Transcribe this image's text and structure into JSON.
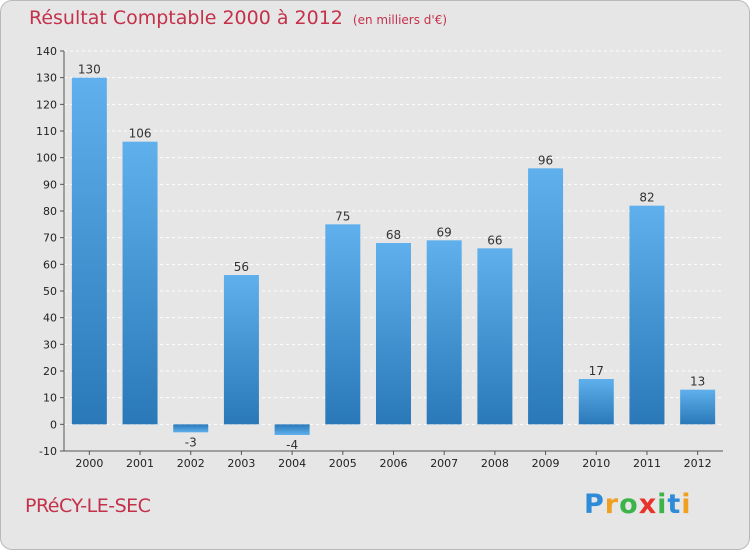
{
  "header": {
    "title": "Résultat Comptable 2000 à 2012",
    "unit": "(en milliers d'€)"
  },
  "footer": {
    "commune": "PRéCY-LE-SEC",
    "brand_letters": [
      "P",
      "r",
      "o",
      "x",
      "i",
      "t",
      "i"
    ],
    "brand_colors": [
      "#2e8bd8",
      "#f0a020",
      "#3cb44a",
      "#e8332a",
      "#3cb44a",
      "#2e8bd8",
      "#f0a020"
    ]
  },
  "colors": {
    "bar_light": "#5fb0ec",
    "bar_dark": "#2a78b8",
    "accent": "#c4314a"
  },
  "chart_data": {
    "type": "bar",
    "categories": [
      "2000",
      "2001",
      "2002",
      "2003",
      "2004",
      "2005",
      "2006",
      "2007",
      "2008",
      "2009",
      "2010",
      "2011",
      "2012"
    ],
    "values": [
      130,
      106,
      -3,
      56,
      -4,
      75,
      68,
      69,
      66,
      96,
      17,
      82,
      13
    ],
    "ylim": [
      -10,
      140
    ],
    "yticks": [
      -10,
      0,
      10,
      20,
      30,
      40,
      50,
      60,
      70,
      80,
      90,
      100,
      110,
      120,
      130,
      140
    ],
    "grid": true
  }
}
